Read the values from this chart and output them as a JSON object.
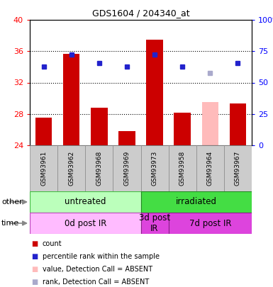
{
  "title": "GDS1604 / 204340_at",
  "samples": [
    "GSM93961",
    "GSM93962",
    "GSM93968",
    "GSM93969",
    "GSM93973",
    "GSM93958",
    "GSM93964",
    "GSM93967"
  ],
  "bar_values": [
    27.5,
    35.7,
    28.8,
    25.8,
    37.5,
    28.2,
    29.5,
    29.3
  ],
  "bar_colors": [
    "#cc0000",
    "#cc0000",
    "#cc0000",
    "#cc0000",
    "#cc0000",
    "#cc0000",
    "#ffbbbb",
    "#cc0000"
  ],
  "rank_values": [
    34.0,
    35.6,
    34.5,
    34.0,
    35.6,
    34.0,
    33.2,
    34.5
  ],
  "rank_colors": [
    "#2222cc",
    "#2222cc",
    "#2222cc",
    "#2222cc",
    "#2222cc",
    "#2222cc",
    "#aaaacc",
    "#2222cc"
  ],
  "ymin": 24,
  "ymax": 40,
  "yticks": [
    24,
    28,
    32,
    36,
    40
  ],
  "y2tick_labels": [
    "0",
    "25",
    "50",
    "75",
    "100%"
  ],
  "y2tick_vals": [
    24,
    28,
    32,
    36,
    40
  ],
  "group_other": [
    {
      "label": "untreated",
      "spans": [
        0,
        4
      ],
      "color": "#bbffbb",
      "border": "#44bb44"
    },
    {
      "label": "irradiated",
      "spans": [
        4,
        8
      ],
      "color": "#44dd44",
      "border": "#228822"
    }
  ],
  "group_time": [
    {
      "label": "0d post IR",
      "spans": [
        0,
        4
      ],
      "color": "#ffbbff",
      "border": "#bb44bb"
    },
    {
      "label": "3d post\nIR",
      "spans": [
        4,
        5
      ],
      "color": "#dd44dd",
      "border": "#882288"
    },
    {
      "label": "7d post IR",
      "spans": [
        5,
        8
      ],
      "color": "#dd44dd",
      "border": "#882288"
    }
  ],
  "legend_items": [
    {
      "label": "count",
      "color": "#cc0000"
    },
    {
      "label": "percentile rank within the sample",
      "color": "#2222cc"
    },
    {
      "label": "value, Detection Call = ABSENT",
      "color": "#ffbbbb"
    },
    {
      "label": "rank, Detection Call = ABSENT",
      "color": "#aaaacc"
    }
  ],
  "bar_bottom": 24,
  "label_bg": "#cccccc",
  "label_border": "#888888"
}
